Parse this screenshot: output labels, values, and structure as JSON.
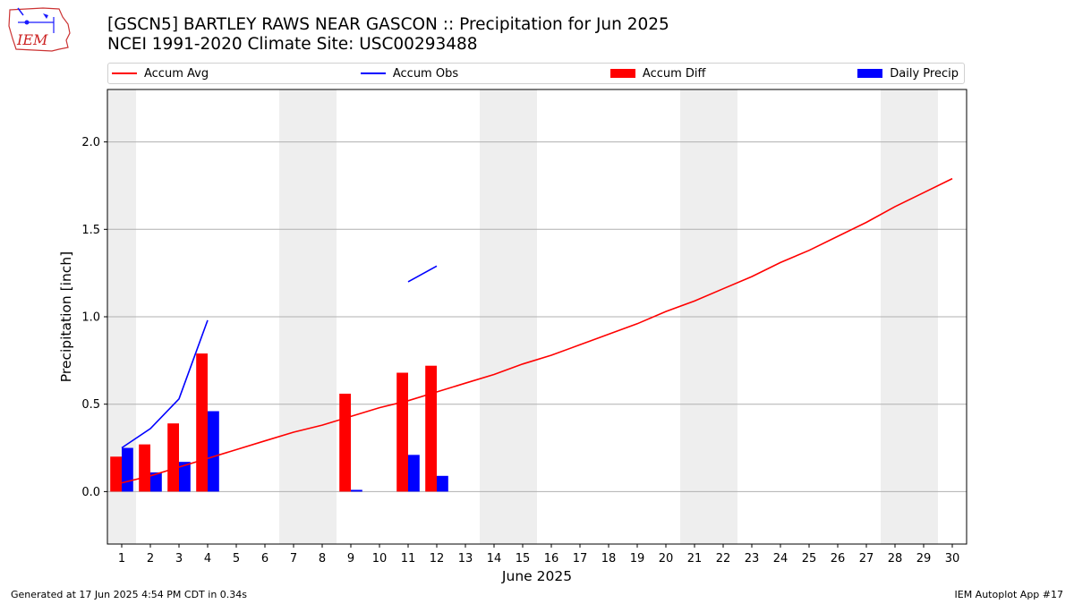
{
  "header": {
    "title_line1": "[GSCN5] BARTLEY RAWS NEAR GASCON :: Precipitation for Jun 2025",
    "title_line2": "NCEI 1991-2020 Climate Site: USC00293488",
    "logo_text": "IEM"
  },
  "legend": {
    "accum_avg": "Accum Avg",
    "accum_obs": "Accum Obs",
    "accum_diff": "Accum Diff",
    "daily_precip": "Daily Precip"
  },
  "colors": {
    "accum_avg": "#ff0000",
    "accum_obs": "#0000ff",
    "accum_diff": "#ff0000",
    "daily_precip": "#0000ff",
    "weekend_shade": "#eeeeee",
    "grid": "#b0b0b0"
  },
  "footer": {
    "left": "Generated at 17 Jun 2025 4:54 PM CDT in 0.34s",
    "right": "IEM Autoplot App #17"
  },
  "chart_data": {
    "type": "bar",
    "xlabel": "June 2025",
    "ylabel": "Precipitation [inch]",
    "xlim": [
      0.5,
      30.5
    ],
    "ylim": [
      -0.3,
      2.3
    ],
    "yticks": [
      0.0,
      0.5,
      1.0,
      1.5,
      2.0
    ],
    "ytick_labels": [
      "0.0",
      "0.5",
      "1.0",
      "1.5",
      "2.0"
    ],
    "days": [
      1,
      2,
      3,
      4,
      5,
      6,
      7,
      8,
      9,
      10,
      11,
      12,
      13,
      14,
      15,
      16,
      17,
      18,
      19,
      20,
      21,
      22,
      23,
      24,
      25,
      26,
      27,
      28,
      29,
      30
    ],
    "grid": "y",
    "legend_position": "top",
    "weekend_shading": [
      [
        0.5,
        1.5
      ],
      [
        6.5,
        8.5
      ],
      [
        13.5,
        15.5
      ],
      [
        20.5,
        22.5
      ],
      [
        27.5,
        29.5
      ]
    ],
    "series": [
      {
        "name": "Accum Avg",
        "kind": "line",
        "x": [
          1,
          2,
          3,
          4,
          5,
          6,
          7,
          8,
          9,
          10,
          11,
          12,
          13,
          14,
          15,
          16,
          17,
          18,
          19,
          20,
          21,
          22,
          23,
          24,
          25,
          26,
          27,
          28,
          29,
          30
        ],
        "values": [
          0.05,
          0.09,
          0.14,
          0.19,
          0.24,
          0.29,
          0.34,
          0.38,
          0.43,
          0.48,
          0.52,
          0.57,
          0.62,
          0.67,
          0.73,
          0.78,
          0.84,
          0.9,
          0.96,
          1.03,
          1.09,
          1.16,
          1.23,
          1.31,
          1.38,
          1.46,
          1.54,
          1.63,
          1.71,
          1.79
        ]
      },
      {
        "name": "Accum Obs",
        "kind": "line",
        "x": [
          1,
          2,
          3,
          4,
          5,
          6,
          7,
          8,
          9,
          10,
          11,
          12
        ],
        "values": [
          0.25,
          0.36,
          0.53,
          0.98,
          null,
          null,
          null,
          null,
          null,
          null,
          1.2,
          1.29
        ]
      },
      {
        "name": "Accum Diff",
        "kind": "bar",
        "x": [
          1,
          2,
          3,
          4,
          9,
          11,
          12
        ],
        "values": [
          0.2,
          0.27,
          0.39,
          0.79,
          0.56,
          0.68,
          0.72
        ]
      },
      {
        "name": "Daily Precip",
        "kind": "bar",
        "x": [
          1,
          2,
          3,
          4,
          9,
          11,
          12
        ],
        "values": [
          0.25,
          0.11,
          0.17,
          0.46,
          0.01,
          0.21,
          0.09
        ]
      }
    ]
  }
}
